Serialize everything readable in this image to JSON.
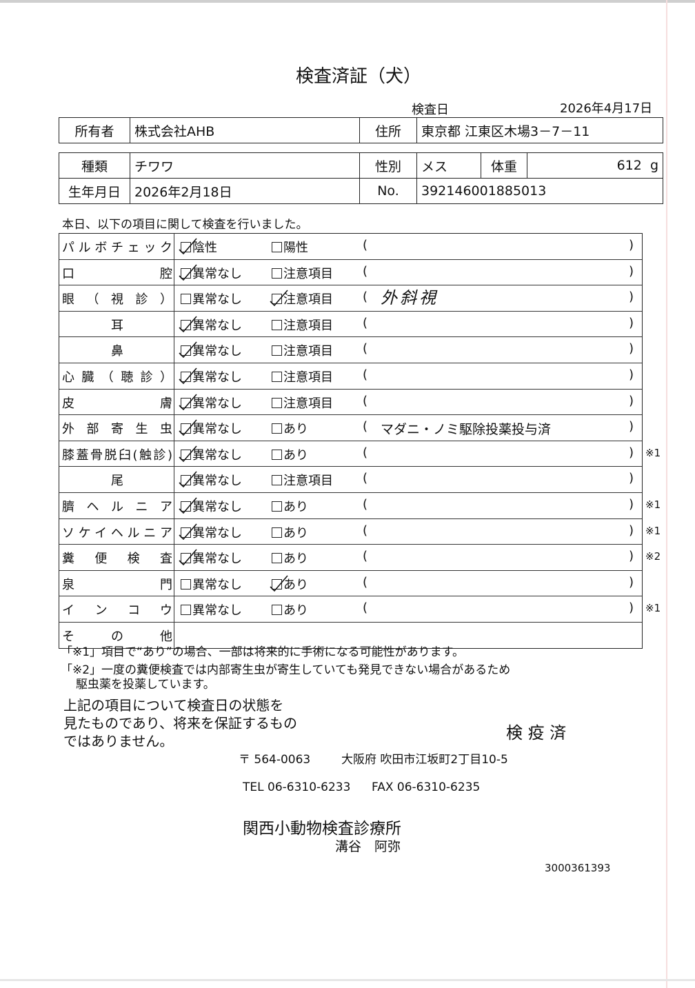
{
  "title": "検査済証（犬）",
  "exam_date_label": "検査日",
  "exam_date": "2026年4月17日",
  "owner": {
    "label": "所有者",
    "value": "株式会社AHB",
    "address_label": "住所",
    "address": "東京都 江東区木場3－7－11"
  },
  "pet": {
    "breed_label": "種類",
    "breed": "チワワ",
    "sex_label": "性別",
    "sex": "メス",
    "weight_label": "体重",
    "weight": "612",
    "weight_unit": "g",
    "birth_label": "生年月日",
    "birth": "2026年2月18日",
    "no_label": "No.",
    "no": "392146001885013"
  },
  "intro": "本日、以下の項目に関して検査を行いました。",
  "paren_open": "(",
  "paren_close": ")",
  "items": [
    {
      "label": "パルボチェック",
      "opt1": "陰性",
      "opt2": "陽性",
      "checked": 1,
      "comment": "",
      "note": ""
    },
    {
      "label": "口腔",
      "opt1": "異常なし",
      "opt2": "注意項目",
      "checked": 1,
      "comment": "",
      "note": ""
    },
    {
      "label": "眼（視診）",
      "opt1": "異常なし",
      "opt2": "注意項目",
      "checked": 2,
      "comment": "外斜視",
      "note": ""
    },
    {
      "label": "耳",
      "opt1": "異常なし",
      "opt2": "注意項目",
      "checked": 1,
      "comment": "",
      "note": ""
    },
    {
      "label": "鼻",
      "opt1": "異常なし",
      "opt2": "注意項目",
      "checked": 1,
      "comment": "",
      "note": ""
    },
    {
      "label": "心臓（聴診）",
      "opt1": "異常なし",
      "opt2": "注意項目",
      "checked": 1,
      "comment": "",
      "note": ""
    },
    {
      "label": "皮膚",
      "opt1": "異常なし",
      "opt2": "注意項目",
      "checked": 1,
      "comment": "",
      "note": ""
    },
    {
      "label": "外部寄生虫",
      "opt1": "異常なし",
      "opt2": "あり",
      "checked": 1,
      "comment": "マダニ・ノミ駆除投薬投与済",
      "note": ""
    },
    {
      "label": "膝蓋骨脱臼(触診)",
      "opt1": "異常なし",
      "opt2": "あり",
      "checked": 1,
      "comment": "",
      "note": "※1"
    },
    {
      "label": "尾",
      "opt1": "異常なし",
      "opt2": "注意項目",
      "checked": 1,
      "comment": "",
      "note": ""
    },
    {
      "label": "臍ヘルニア",
      "opt1": "異常なし",
      "opt2": "あり",
      "checked": 1,
      "comment": "",
      "note": "※1"
    },
    {
      "label": "ソケイヘルニア",
      "opt1": "異常なし",
      "opt2": "あり",
      "checked": 1,
      "comment": "",
      "note": "※1"
    },
    {
      "label": "糞便検査",
      "opt1": "異常なし",
      "opt2": "あり",
      "checked": 1,
      "comment": "",
      "note": "※2"
    },
    {
      "label": "泉門",
      "opt1": "異常なし",
      "opt2": "あり",
      "checked": 2,
      "comment": "",
      "note": ""
    },
    {
      "label": "インコウ",
      "opt1": "異常なし",
      "opt2": "あり",
      "checked": 0,
      "comment": "",
      "note": "※1"
    },
    {
      "label": "その他",
      "opt1": "",
      "opt2": "",
      "checked": 0,
      "comment": "",
      "note": ""
    }
  ],
  "footnote1": "「※1」項目で“あり”の場合、一部は将来的に手術になる可能性があります。",
  "footnote2a": "「※2」一度の糞便検査では内部寄生虫が寄生していても発見できない場合があるため",
  "footnote2b": "駆虫薬を投薬しています。",
  "disclaimer": [
    "上記の項目について検査日の状態を",
    "見たものであり、将来を保証するもの",
    "ではありません。"
  ],
  "stamp": "検 疫 済",
  "postal": "〒 564-0063",
  "address": "大阪府 吹田市江坂町2丁目10-5",
  "tel": "TEL 06-6310-6233",
  "fax": "FAX 06-6310-6235",
  "clinic": "関西小動物検査診療所",
  "doctor": "溝谷　阿弥",
  "doc_code": "3000361393"
}
